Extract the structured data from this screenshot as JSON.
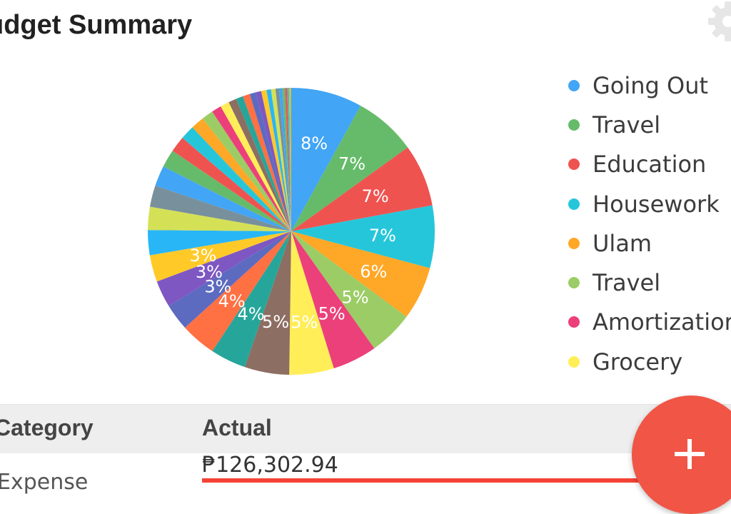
{
  "header": {
    "title": "udget Summary",
    "settings_icon": "gear-icon"
  },
  "chart_data": {
    "type": "pie",
    "title": "",
    "legend_position": "right",
    "slices": [
      {
        "label": "8%",
        "value": 8,
        "color": "#42A5F5"
      },
      {
        "label": "7%",
        "value": 7,
        "color": "#66BB6A"
      },
      {
        "label": "7%",
        "value": 7,
        "color": "#EF5350"
      },
      {
        "label": "7%",
        "value": 7,
        "color": "#26C6DA"
      },
      {
        "label": "6%",
        "value": 6,
        "color": "#FFA726"
      },
      {
        "label": "5%",
        "value": 5,
        "color": "#9CCC65"
      },
      {
        "label": "5%",
        "value": 5,
        "color": "#EC407A"
      },
      {
        "label": "5%",
        "value": 5,
        "color": "#FFEE58"
      },
      {
        "label": "5%",
        "value": 5,
        "color": "#8D6E63"
      },
      {
        "label": "4%",
        "value": 4,
        "color": "#26A69A"
      },
      {
        "label": "4%",
        "value": 4,
        "color": "#FF7043"
      },
      {
        "label": "3%",
        "value": 3,
        "color": "#5C6BC0"
      },
      {
        "label": "3%",
        "value": 3,
        "color": "#7E57C2"
      },
      {
        "label": "3%",
        "value": 3,
        "color": "#FFCA28"
      },
      {
        "label": "",
        "value": 2.8,
        "color": "#29B6F6"
      },
      {
        "label": "",
        "value": 2.6,
        "color": "#D4E157"
      },
      {
        "label": "",
        "value": 2.4,
        "color": "#78909C"
      },
      {
        "label": "",
        "value": 2.3,
        "color": "#42A5F5"
      },
      {
        "label": "",
        "value": 2.0,
        "color": "#66BB6A"
      },
      {
        "label": "",
        "value": 1.8,
        "color": "#EF5350"
      },
      {
        "label": "",
        "value": 1.6,
        "color": "#26C6DA"
      },
      {
        "label": "",
        "value": 1.5,
        "color": "#FFA726"
      },
      {
        "label": "",
        "value": 1.3,
        "color": "#9CCC65"
      },
      {
        "label": "",
        "value": 1.1,
        "color": "#EC407A"
      },
      {
        "label": "",
        "value": 1.0,
        "color": "#FFEE58"
      },
      {
        "label": "",
        "value": 0.9,
        "color": "#8D6E63"
      },
      {
        "label": "",
        "value": 0.8,
        "color": "#26A69A"
      },
      {
        "label": "",
        "value": 0.8,
        "color": "#FF7043"
      },
      {
        "label": "",
        "value": 0.7,
        "color": "#5C6BC0"
      },
      {
        "label": "",
        "value": 0.6,
        "color": "#7E57C2"
      },
      {
        "label": "",
        "value": 0.6,
        "color": "#FFCA28"
      },
      {
        "label": "",
        "value": 0.5,
        "color": "#29B6F6"
      },
      {
        "label": "",
        "value": 0.5,
        "color": "#D4E157"
      },
      {
        "label": "",
        "value": 0.4,
        "color": "#78909C"
      },
      {
        "label": "",
        "value": 0.35,
        "color": "#42A5F5"
      },
      {
        "label": "",
        "value": 0.3,
        "color": "#66BB6A"
      },
      {
        "label": "",
        "value": 0.25,
        "color": "#EF5350"
      },
      {
        "label": "",
        "value": 0.2,
        "color": "#26C6DA"
      },
      {
        "label": "",
        "value": 0.15,
        "color": "#FFA726"
      },
      {
        "label": "",
        "value": 0.1,
        "color": "#9CCC65"
      }
    ],
    "legend": [
      {
        "label": "Going Out",
        "color": "#42A5F5"
      },
      {
        "label": "Travel",
        "color": "#66BB6A"
      },
      {
        "label": "Education",
        "color": "#EF5350"
      },
      {
        "label": "Housework",
        "color": "#26C6DA"
      },
      {
        "label": "Ulam",
        "color": "#FFA726"
      },
      {
        "label": "Travel",
        "color": "#9CCC65"
      },
      {
        "label": "Amortizatior",
        "color": "#EC407A"
      },
      {
        "label": "Grocery",
        "color": "#FFEE58"
      }
    ]
  },
  "table": {
    "headers": {
      "category": "Category",
      "actual": "Actual"
    },
    "actual_total": "₱126,302.94",
    "first_row_category": "Expense"
  },
  "fab": {
    "icon": "plus-icon",
    "color": "#f05545"
  }
}
